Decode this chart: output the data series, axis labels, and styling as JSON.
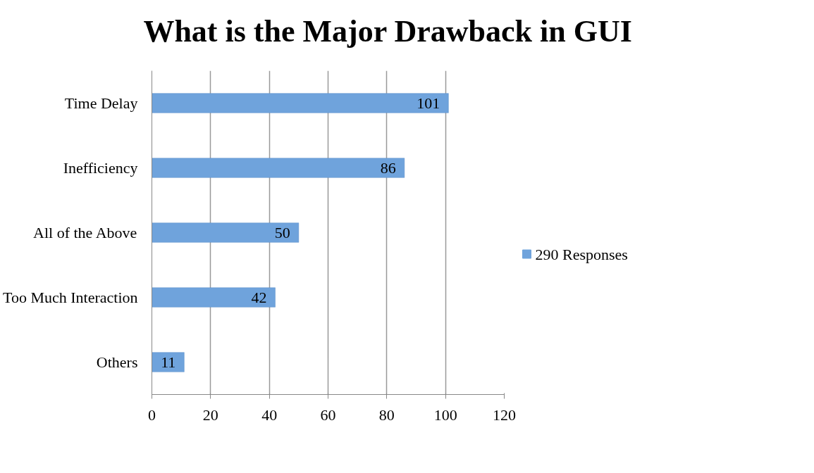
{
  "chart_data": {
    "type": "bar",
    "orientation": "horizontal",
    "title": "What is the Major Drawback in GUI",
    "categories": [
      "Time Delay",
      "Inefficiency",
      "All of the Above",
      "Too Much Interaction",
      "Others"
    ],
    "series": [
      {
        "name": "290 Responses",
        "color": "#6fa3dc",
        "values": [
          101,
          86,
          50,
          42,
          11
        ]
      }
    ],
    "xlim": [
      0,
      120
    ],
    "xticks": [
      0,
      20,
      40,
      60,
      80,
      100,
      120
    ],
    "grid": "x",
    "legend": "right",
    "data_labels": true
  }
}
